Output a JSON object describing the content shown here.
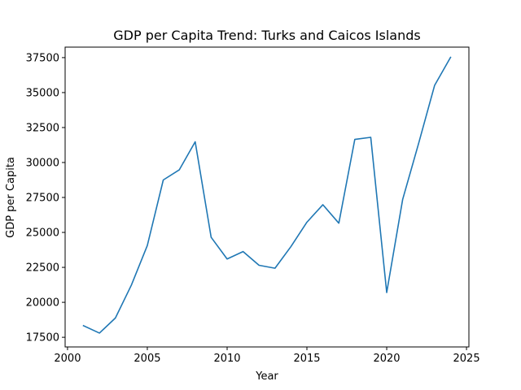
{
  "chart_data": {
    "type": "line",
    "title": "GDP per Capita Trend: Turks and Caicos Islands",
    "xlabel": "Year",
    "ylabel": "GDP per Capita",
    "xlim": [
      1999.85,
      2025.15
    ],
    "ylim": [
      16810,
      38250
    ],
    "xticks": [
      2000,
      2005,
      2010,
      2015,
      2020,
      2025
    ],
    "yticks": [
      17500,
      20000,
      22500,
      25000,
      27500,
      30000,
      32500,
      35000,
      37500
    ],
    "grid": false,
    "colors": {
      "line": "#1f77b4"
    },
    "series": [
      {
        "x": [
          2001,
          2002,
          2003,
          2004,
          2005,
          2006,
          2007,
          2008,
          2009,
          2010,
          2011,
          2012,
          2013,
          2014,
          2015,
          2016,
          2017,
          2018,
          2019,
          2020,
          2021,
          2022,
          2023,
          2024
        ],
        "values": [
          18330,
          17800,
          18880,
          21230,
          24060,
          28750,
          29470,
          31480,
          24650,
          23100,
          23630,
          22650,
          22440,
          23990,
          25730,
          26980,
          25660,
          31650,
          31800,
          20700,
          27360,
          31370,
          35510,
          37520
        ]
      }
    ]
  }
}
